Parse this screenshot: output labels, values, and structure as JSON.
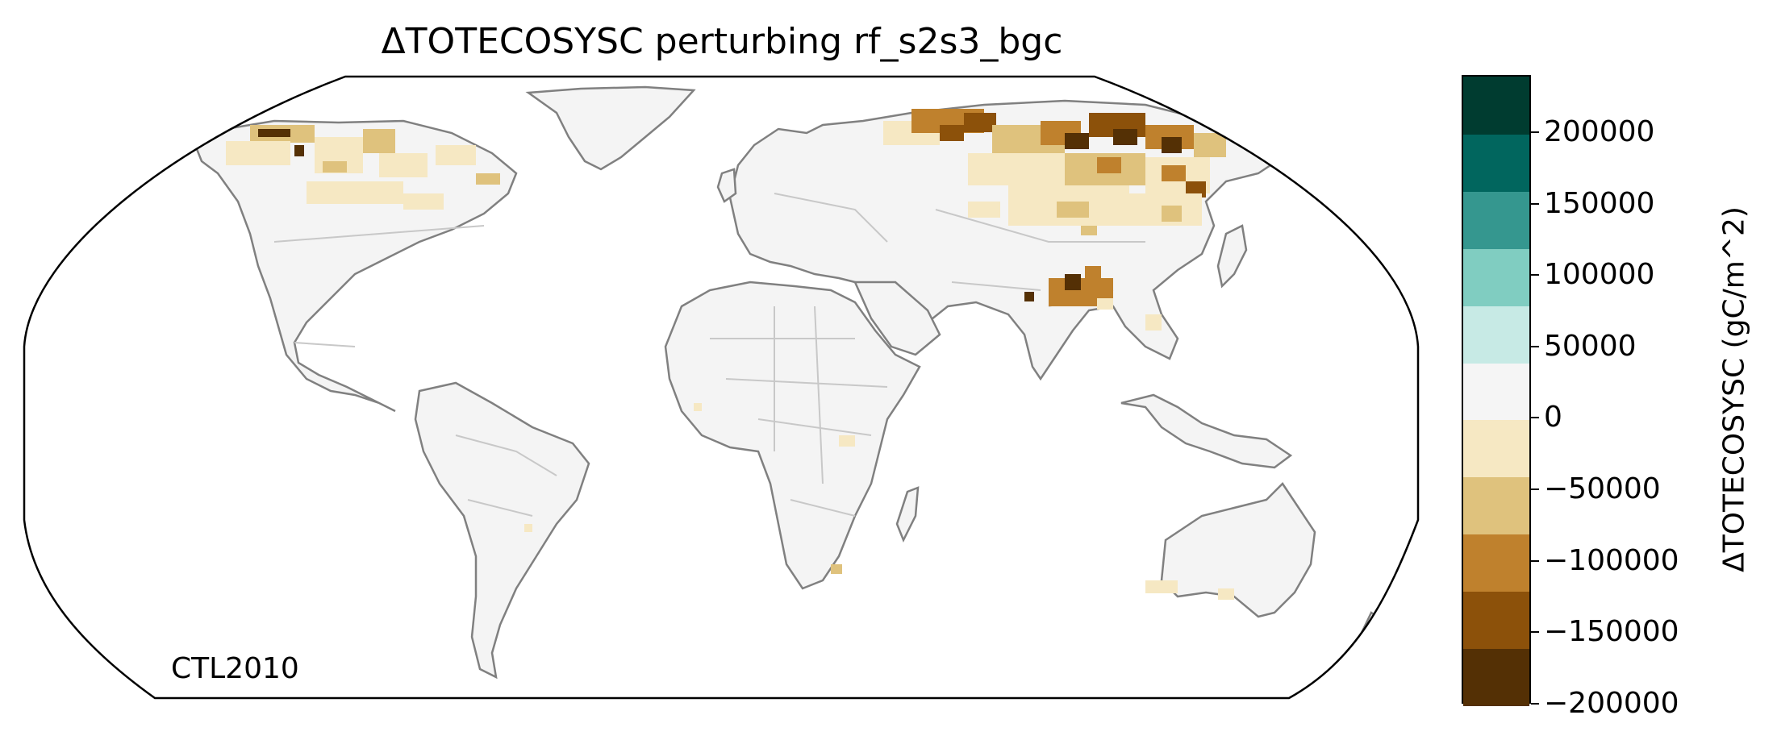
{
  "title": "ΔTOTECOSYSC perturbing rf_s2s3_bgc",
  "map_label": "CTL2010",
  "colorbar": {
    "label": "ΔTOTECOSYSC (gC/m^2)",
    "min": -200000,
    "max": 200000,
    "segments": [
      {
        "from": -200000,
        "to": -160000,
        "color": "#543005"
      },
      {
        "from": -160000,
        "to": -120000,
        "color": "#8c510a"
      },
      {
        "from": -120000,
        "to": -80000,
        "color": "#bf812d"
      },
      {
        "from": -80000,
        "to": -40000,
        "color": "#dfc27d"
      },
      {
        "from": -40000,
        "to": 0,
        "color": "#f6e8c3"
      },
      {
        "from": 0,
        "to": 40000,
        "color": "#f5f5f5"
      },
      {
        "from": 40000,
        "to": 80000,
        "color": "#c7eae5"
      },
      {
        "from": 80000,
        "to": 120000,
        "color": "#80cdc1"
      },
      {
        "from": 120000,
        "to": 160000,
        "color": "#35978f"
      },
      {
        "from": 160000,
        "to": 200000,
        "color": "#01665e"
      },
      {
        "from": 200000,
        "to": 240000,
        "color": "#003c30"
      }
    ],
    "ticks": [
      {
        "value": 200000,
        "label": "200000"
      },
      {
        "value": 150000,
        "label": "150000"
      },
      {
        "value": 100000,
        "label": "100000"
      },
      {
        "value": 50000,
        "label": "50000"
      },
      {
        "value": 0,
        "label": "0"
      },
      {
        "value": -50000,
        "label": "−50000"
      },
      {
        "value": -100000,
        "label": "−100000"
      },
      {
        "value": -150000,
        "label": "−150000"
      },
      {
        "value": -200000,
        "label": "−200000"
      }
    ]
  },
  "colors": {
    "land": "#f4f4f4",
    "coastline": "#808080",
    "borders": "#c8c8c8",
    "light_loss": "#f6e8c3",
    "moderate_loss": "#dfc27d",
    "strong_loss": "#bf812d",
    "severe_loss": "#8c510a",
    "extreme_loss": "#543005"
  }
}
